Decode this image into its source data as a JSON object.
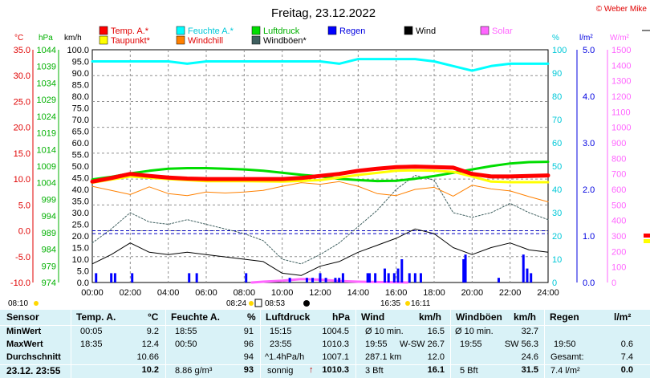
{
  "title": "Freitag, 23.12.2022",
  "copyright": "© Weber Mike",
  "legend": [
    {
      "label": "Temp. A.*",
      "color": "#ff0000"
    },
    {
      "label": "Feuchte A.*",
      "color": "#00ffff"
    },
    {
      "label": "Luftdruck",
      "color": "#00dd00"
    },
    {
      "label": "Regen",
      "color": "#0000ff"
    },
    {
      "label": "Wind",
      "color": "#000000"
    },
    {
      "label": "Solar",
      "color": "#ff66ff"
    },
    {
      "label": "Taupunkt*",
      "color": "#ffff00"
    },
    {
      "label": "Windchill",
      "color": "#ff8000"
    },
    {
      "label": "Windböen*",
      "color": "#406060"
    }
  ],
  "axes": {
    "temp_unit": "°C",
    "press_unit": "hPa",
    "wind_unit": "km/h",
    "hum_unit": "%",
    "rain_unit": "l/m²",
    "solar_unit": "W/m²",
    "temp_ticks": [
      "35.0",
      "30.0",
      "25.0",
      "20.0",
      "15.0",
      "10.0",
      "5.0",
      "0.0",
      "-5.0",
      "-10.0"
    ],
    "press_ticks": [
      "1044",
      "1039",
      "1034",
      "1029",
      "1024",
      "1019",
      "1014",
      "1009",
      "1004",
      "999",
      "994",
      "989",
      "984",
      "979",
      "974"
    ],
    "wind_ticks": [
      "100.0",
      "95.0",
      "90.0",
      "85.0",
      "80.0",
      "75.0",
      "70.0",
      "65.0",
      "60.0",
      "55.0",
      "50.0",
      "45.0",
      "40.0",
      "35.0",
      "30.0",
      "25.0",
      "20.0",
      "15.0",
      "10.0",
      "5.0",
      "0.0"
    ],
    "hum_ticks": [
      "100",
      "90",
      "80",
      "70",
      "60",
      "50",
      "40",
      "30",
      "20",
      "10",
      "0"
    ],
    "rain_ticks": [
      "5.0",
      "4.0",
      "3.0",
      "2.0",
      "1.0",
      "0.0"
    ],
    "solar_ticks": [
      "1500",
      "1400",
      "1300",
      "1200",
      "1100",
      "1000",
      "900",
      "800",
      "700",
      "600",
      "500",
      "400",
      "300",
      "200",
      "100",
      "0"
    ],
    "x_ticks": [
      "00:00",
      "02:00",
      "04:00",
      "06:00",
      "08:00",
      "10:00",
      "12:00",
      "14:00",
      "16:00",
      "18:00",
      "20:00",
      "22:00",
      "24:00"
    ]
  },
  "sun_moon": {
    "sunrise": "08:24",
    "sunset": "16:35",
    "moonrise": "08:53",
    "moonset": "16:11",
    "left_time": "08:10"
  },
  "chart_data": {
    "type": "line",
    "x_unit": "hours",
    "xlim": [
      0,
      24
    ],
    "series": [
      {
        "name": "Temp. A.*",
        "axis": "temp",
        "x": [
          0,
          1,
          2,
          3,
          4,
          5,
          6,
          7,
          8,
          9,
          10,
          11,
          12,
          13,
          14,
          15,
          16,
          17,
          18,
          19,
          20,
          21,
          22,
          23,
          24
        ],
        "values": [
          9.5,
          10.2,
          11.0,
          10.6,
          10.3,
          10.1,
          10.0,
          10.0,
          10.0,
          10.0,
          10.0,
          10.2,
          10.6,
          11.0,
          11.6,
          12.0,
          12.3,
          12.4,
          12.3,
          12.2,
          11.0,
          10.5,
          10.5,
          10.6,
          10.7
        ]
      },
      {
        "name": "Taupunkt*",
        "axis": "temp",
        "x": [
          0,
          2,
          4,
          6,
          8,
          10,
          12,
          14,
          16,
          17,
          18,
          19,
          20,
          21,
          22,
          24
        ],
        "values": [
          9.3,
          10.5,
          10.0,
          9.6,
          9.6,
          9.5,
          9.8,
          10.8,
          11.6,
          11.7,
          11.6,
          11.4,
          10.5,
          9.5,
          9.4,
          9.4
        ]
      },
      {
        "name": "Feuchte A.*",
        "axis": "hum",
        "x": [
          0,
          1,
          2,
          3,
          4,
          5,
          6,
          7,
          8,
          9,
          10,
          11,
          12,
          13,
          14,
          15,
          16,
          17,
          18,
          19,
          20,
          21,
          22,
          23,
          24
        ],
        "values": [
          95,
          95,
          95,
          95,
          95,
          94,
          95,
          95,
          95,
          95,
          95,
          95,
          95,
          94,
          96,
          96,
          96,
          96,
          95,
          93,
          91,
          93,
          94,
          94,
          94
        ]
      },
      {
        "name": "Luftdruck",
        "axis": "press",
        "x": [
          0,
          1,
          2,
          3,
          4,
          5,
          6,
          7,
          8,
          9,
          10,
          11,
          12,
          13,
          14,
          15,
          16,
          17,
          18,
          19,
          20,
          21,
          22,
          23,
          24
        ],
        "values": [
          1005.0,
          1005.8,
          1006.8,
          1007.6,
          1008.2,
          1008.4,
          1008.4,
          1008.2,
          1008.0,
          1007.6,
          1007.0,
          1006.4,
          1005.9,
          1005.2,
          1004.8,
          1004.5,
          1004.6,
          1005.2,
          1006.0,
          1007.0,
          1008.0,
          1009.0,
          1009.8,
          1010.2,
          1010.3
        ]
      },
      {
        "name": "Windchill",
        "axis": "temp",
        "x": [
          0,
          1,
          2,
          3,
          4,
          5,
          6,
          7,
          8,
          9,
          10,
          11,
          12,
          13,
          14,
          15,
          16,
          17,
          18,
          19,
          20,
          21,
          22,
          23,
          24
        ],
        "values": [
          8.6,
          7.8,
          7.0,
          8.5,
          7.2,
          6.8,
          7.5,
          7.3,
          7.5,
          7.8,
          8.6,
          9.3,
          9.0,
          9.5,
          8.6,
          7.2,
          6.8,
          8.0,
          8.4,
          6.7,
          8.8,
          8.1,
          7.7,
          6.6,
          5.6
        ]
      },
      {
        "name": "Wind",
        "axis": "wind",
        "x": [
          0,
          1,
          2,
          3,
          4,
          5,
          6,
          7,
          8,
          9,
          10,
          11,
          12,
          13,
          14,
          15,
          16,
          17,
          18,
          19,
          20,
          21,
          22,
          23,
          24
        ],
        "values": [
          8,
          12,
          17,
          13,
          12,
          13,
          12,
          11,
          10,
          9,
          4,
          3,
          7,
          9,
          13,
          16,
          19,
          23,
          21,
          15,
          12,
          15,
          17,
          14,
          13
        ]
      },
      {
        "name": "Windböen*",
        "axis": "wind",
        "x": [
          0,
          1,
          2,
          3,
          4,
          5,
          6,
          7,
          8,
          9,
          10,
          11,
          12,
          13,
          14,
          15,
          16,
          17,
          18,
          19,
          20,
          21,
          22,
          23,
          24
        ],
        "values": [
          17,
          23,
          30,
          26,
          25,
          27,
          25,
          23,
          21,
          18,
          10,
          8,
          12,
          17,
          24,
          31,
          40,
          46,
          44,
          30,
          28,
          30,
          34,
          30,
          27
        ]
      },
      {
        "name": "Regen",
        "axis": "rain",
        "x": [
          0.2,
          1.0,
          1.2,
          2.1,
          5.1,
          5.5,
          8.1,
          10.4,
          11.3,
          11.6,
          12.0,
          12.3,
          12.8,
          13.0,
          13.2,
          14.5,
          14.6,
          14.9,
          15.4,
          15.6,
          15.9,
          16.1,
          16.3,
          16.7,
          17.0,
          17.3,
          19.55,
          19.65,
          21.4,
          22.7,
          22.9,
          23.1
        ],
        "values": [
          0.2,
          0.2,
          0.2,
          0.2,
          0.2,
          0.2,
          0.2,
          0.1,
          0.1,
          0.1,
          0.2,
          0.1,
          0.1,
          0.1,
          0.2,
          0.2,
          0.2,
          0.2,
          0.3,
          0.2,
          0.2,
          0.3,
          0.5,
          0.2,
          0.2,
          0.2,
          0.5,
          0.6,
          0.1,
          0.6,
          0.3,
          0.2
        ]
      },
      {
        "name": "Solar",
        "axis": "solar",
        "x": [
          8.4,
          9,
          10,
          11,
          12,
          13,
          14,
          15,
          16,
          16.6
        ],
        "values": [
          0,
          5,
          12,
          22,
          18,
          10,
          5,
          3,
          1,
          0
        ]
      }
    ],
    "ref_line_wind": 21
  },
  "table": {
    "headers": {
      "sensor": "Sensor",
      "temp": "Temp. A.",
      "temp_unit": "°C",
      "hum": "Feuchte A.",
      "hum_unit": "%",
      "press": "Luftdruck",
      "press_unit": "hPa",
      "wind": "Wind",
      "wind_unit": "km/h",
      "gust": "Windböen",
      "gust_unit": "km/h",
      "rain": "Regen",
      "rain_unit": "l/m²"
    },
    "row_labels": [
      "MinWert",
      "MaxWert",
      "Durchschnitt",
      "23.12. 23:55"
    ],
    "temp": [
      [
        "00:05",
        "9.2"
      ],
      [
        "18:35",
        "12.4"
      ],
      [
        "",
        "10.66"
      ],
      [
        "",
        "10.2"
      ]
    ],
    "hum": [
      [
        "18:55",
        "91"
      ],
      [
        "00:50",
        "96"
      ],
      [
        "",
        "94"
      ],
      [
        "8.86 g/m³",
        "93"
      ]
    ],
    "press": [
      [
        "15:15",
        "1004.5"
      ],
      [
        "23:55",
        "1010.3"
      ],
      [
        "^1.4hPa/h",
        "1007.1"
      ],
      [
        "sonnig",
        "1010.3"
      ]
    ],
    "press_arrow": "↑",
    "wind": [
      [
        "Ø 10 min.",
        "16.5"
      ],
      [
        "19:55",
        "W-SW 26.7"
      ],
      [
        "287.1 km",
        "12.0"
      ],
      [
        "3 Bft",
        "16.1"
      ]
    ],
    "gust": [
      [
        "Ø 10 min.",
        "32.7"
      ],
      [
        "19:55",
        "SW 56.3"
      ],
      [
        "",
        "24.6"
      ],
      [
        "5 Bft",
        "31.5"
      ]
    ],
    "rain": [
      [
        "",
        ""
      ],
      [
        "19:50",
        "0.6"
      ],
      [
        "Gesamt:",
        "7.4"
      ],
      [
        "7.4 l/m²",
        "0.0"
      ]
    ]
  }
}
